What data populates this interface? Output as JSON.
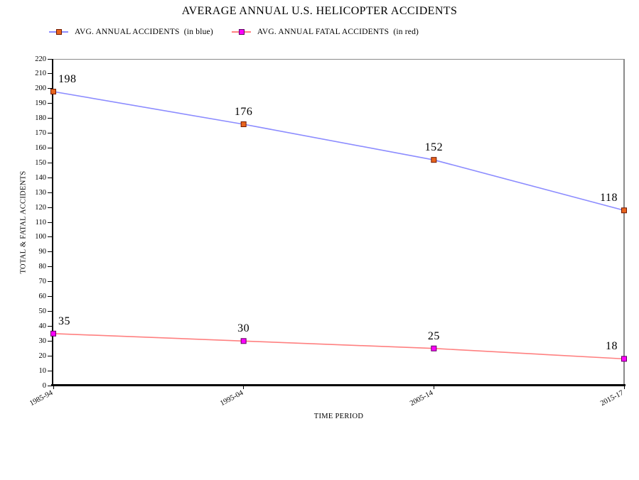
{
  "title": "AVERAGE ANNUAL U.S. HELICOPTER ACCIDENTS",
  "legend": [
    {
      "label": "AVG. ANNUAL ACCIDENTS  (in blue)",
      "line_color": "#8C8CFF",
      "marker_fill": "#E8641E",
      "marker_border": "#701800"
    },
    {
      "label": "AVG. ANNUAL FATAL ACCIDENTS  (in red)",
      "line_color": "#FF8080",
      "marker_fill": "#FF00FF",
      "marker_border": "#5E005E"
    }
  ],
  "chart_data": {
    "type": "line",
    "title": "AVERAGE ANNUAL U.S. HELICOPTER ACCIDENTS",
    "categories": [
      "1985-94",
      "1995-04",
      "2005-14",
      "2015-17"
    ],
    "series": [
      {
        "name": "AVG. ANNUAL ACCIDENTS",
        "color": "#8C8CFF",
        "marker_fill": "#E8641E",
        "marker_border": "#701800",
        "values": [
          198,
          176,
          152,
          118
        ]
      },
      {
        "name": "AVG. ANNUAL FATAL ACCIDENTS",
        "color": "#FF8080",
        "marker_fill": "#FF00FF",
        "marker_border": "#5E005E",
        "values": [
          35,
          30,
          25,
          18
        ]
      }
    ],
    "xlabel": "TIME PERIOD",
    "ylabel": "TOTAL & FATAL ACCIDENTS",
    "ylim": [
      0,
      220
    ],
    "ytick_step": 10,
    "grid": false,
    "legend_position": "top-left"
  }
}
